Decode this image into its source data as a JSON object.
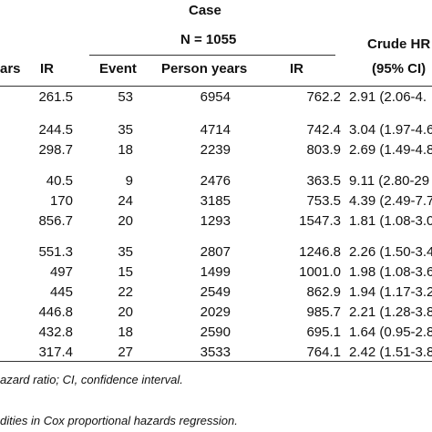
{
  "header": {
    "case_title": "Case",
    "case_n": "N = 1055",
    "crude_hr": "Crude HR",
    "ci_95": "(95% CI)",
    "col_years_partial": "ars",
    "col_ir_left": "IR",
    "col_event": "Event",
    "col_person_years": "Person years",
    "col_ir_right": "IR"
  },
  "rows": [
    {
      "ir_left": "261.5",
      "event": "53",
      "person_years": "6954",
      "ir_right": "762.2",
      "hr": "2.91 (2.06-4."
    },
    {
      "ir_left": "244.5",
      "event": "35",
      "person_years": "4714",
      "ir_right": "742.4",
      "hr": "3.04 (1.97-4.6"
    },
    {
      "ir_left": "298.7",
      "event": "18",
      "person_years": "2239",
      "ir_right": "803.9",
      "hr": "2.69 (1.49-4.8"
    },
    {
      "ir_left": "40.5",
      "event": "9",
      "person_years": "2476",
      "ir_right": "363.5",
      "hr": "9.11 (2.80-29"
    },
    {
      "ir_left": "170",
      "event": "24",
      "person_years": "3185",
      "ir_right": "753.5",
      "hr": "4.39 (2.49-7.7"
    },
    {
      "ir_left": "856.7",
      "event": "20",
      "person_years": "1293",
      "ir_right": "1547.3",
      "hr": "1.81 (1.08-3.0"
    },
    {
      "ir_left": "551.3",
      "event": "35",
      "person_years": "2807",
      "ir_right": "1246.8",
      "hr": "2.26 (1.50-3.4"
    },
    {
      "ir_left": "497",
      "event": "15",
      "person_years": "1499",
      "ir_right": "1001.0",
      "hr": "1.98 (1.08-3.6"
    },
    {
      "ir_left": "445",
      "event": "22",
      "person_years": "2549",
      "ir_right": "862.9",
      "hr": "1.94 (1.17-3.2"
    },
    {
      "ir_left": "446.8",
      "event": "20",
      "person_years": "2029",
      "ir_right": "985.7",
      "hr": "2.21 (1.28-3.8"
    },
    {
      "ir_left": "432.8",
      "event": "18",
      "person_years": "2590",
      "ir_right": "695.1",
      "hr": "1.64 (0.95-2.8"
    },
    {
      "ir_left": "317.4",
      "event": "27",
      "person_years": "3533",
      "ir_right": "764.1",
      "hr": "2.42 (1.51-3.8"
    }
  ],
  "footnotes": [
    "azard ratio; CI, confidence interval.",
    "dities in Cox proportional hazards regression."
  ]
}
